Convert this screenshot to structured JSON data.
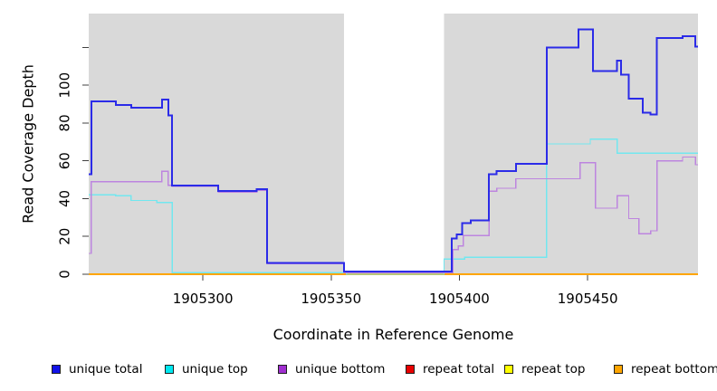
{
  "chart_data": {
    "type": "line",
    "step": true,
    "title": "",
    "xlabel": "Coordinate in Reference Genome",
    "ylabel": "Read Coverage Depth",
    "x_domain": [
      1905255.5,
      1905493
    ],
    "y_domain": [
      0,
      137.9
    ],
    "x_ticks": [
      1905300,
      1905350,
      1905400,
      1905450
    ],
    "y_ticks": [
      0,
      20,
      40,
      60,
      80,
      100,
      120
    ],
    "y_tick_labels": [
      "0",
      "20",
      "40",
      "60",
      "80",
      "100",
      ""
    ],
    "grid": "off",
    "plot_background": "#ffffff",
    "shaded_regions": [
      {
        "x0": 1905255.5,
        "x1": 1905355,
        "color": "#d9d9d9"
      },
      {
        "x0": 1905394,
        "x1": 1905493,
        "color": "#d9d9d9"
      }
    ],
    "series": [
      {
        "name": "repeat total",
        "key": "repeat-total",
        "color": "#e00000",
        "width": 1.5,
        "points": [
          [
            1905255.5,
            0
          ]
        ]
      },
      {
        "name": "repeat top",
        "key": "repeat-top",
        "color": "#ffff00",
        "width": 1.5,
        "points": [
          [
            1905255.5,
            0
          ]
        ]
      },
      {
        "name": "repeat bottom",
        "key": "repeat-bottom",
        "color": "#ffa500",
        "width": 1.8,
        "points": [
          [
            1905255.5,
            0
          ]
        ]
      },
      {
        "name": "unique top",
        "key": "unique-top",
        "color": "#72e7ef",
        "width": 1.3,
        "points": [
          [
            1905255.5,
            42
          ],
          [
            1905266,
            41.5
          ],
          [
            1905272,
            39
          ],
          [
            1905282,
            38
          ],
          [
            1905288,
            0.8
          ],
          [
            1905356,
            0
          ],
          [
            1905394,
            8
          ],
          [
            1905402,
            9
          ],
          [
            1905434,
            69
          ],
          [
            1905451,
            71.5
          ],
          [
            1905461.5,
            64
          ]
        ]
      },
      {
        "name": "unique bottom",
        "key": "unique-bottom",
        "color": "#bd85df",
        "width": 1.3,
        "points": [
          [
            1905255.5,
            11
          ],
          [
            1905256.5,
            49
          ],
          [
            1905284,
            54.5
          ],
          [
            1905286.5,
            47
          ],
          [
            1905288,
            46.5
          ],
          [
            1905306,
            43.5
          ],
          [
            1905321,
            44.5
          ],
          [
            1905325,
            5.5
          ],
          [
            1905355,
            0.7
          ],
          [
            1905397.5,
            13
          ],
          [
            1905399.5,
            15
          ],
          [
            1905401.5,
            20.5
          ],
          [
            1905411.5,
            44
          ],
          [
            1905414.5,
            45.5
          ],
          [
            1905422,
            50.5
          ],
          [
            1905447,
            59
          ],
          [
            1905453,
            35
          ],
          [
            1905461.5,
            41.5
          ],
          [
            1905466,
            29.5
          ],
          [
            1905470,
            21.5
          ],
          [
            1905474.5,
            23
          ],
          [
            1905477,
            60
          ],
          [
            1905487,
            62
          ],
          [
            1905492,
            58
          ]
        ]
      },
      {
        "name": "unique total",
        "key": "unique-total",
        "color": "#2b2be8",
        "width": 2,
        "points": [
          [
            1905255.5,
            53
          ],
          [
            1905256.5,
            91.5
          ],
          [
            1905266,
            89.5
          ],
          [
            1905272,
            88
          ],
          [
            1905284,
            92.5
          ],
          [
            1905286.5,
            84
          ],
          [
            1905288,
            47
          ],
          [
            1905306,
            44
          ],
          [
            1905321,
            45
          ],
          [
            1905325,
            6
          ],
          [
            1905355,
            1.5
          ],
          [
            1905397,
            19
          ],
          [
            1905399,
            21
          ],
          [
            1905401,
            27
          ],
          [
            1905404.5,
            28.5
          ],
          [
            1905411.5,
            53
          ],
          [
            1905414.5,
            54.5
          ],
          [
            1905422,
            58.5
          ],
          [
            1905434,
            120
          ],
          [
            1905446.5,
            129.5
          ],
          [
            1905452,
            107.5
          ],
          [
            1905461.5,
            113
          ],
          [
            1905463,
            105.5
          ],
          [
            1905466,
            93
          ],
          [
            1905471.5,
            85.5
          ],
          [
            1905474.5,
            84.5
          ],
          [
            1905477,
            125
          ],
          [
            1905487,
            126
          ],
          [
            1905492,
            120.5
          ]
        ]
      }
    ],
    "legend_position": "bottom"
  },
  "legend": {
    "items": [
      {
        "label": "unique total",
        "color": "#1212e8"
      },
      {
        "label": "unique top",
        "color": "#00e8f0"
      },
      {
        "label": "unique bottom",
        "color": "#a02fd0"
      },
      {
        "label": "repeat total",
        "color": "#e80000"
      },
      {
        "label": "repeat top",
        "color": "#ffff00"
      },
      {
        "label": "repeat bottom",
        "color": "#ffa500"
      }
    ]
  }
}
